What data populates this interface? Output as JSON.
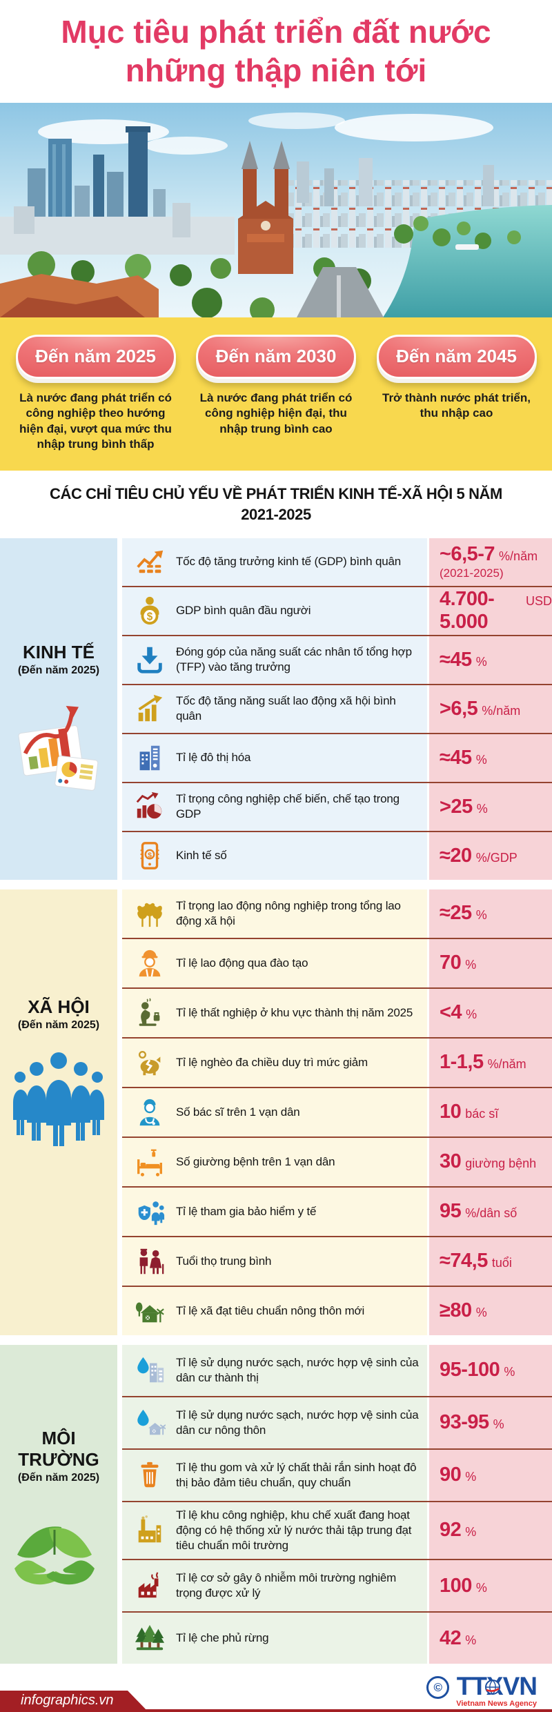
{
  "title": {
    "line1": "Mục tiêu phát triển đất nước",
    "line2": "những thập niên tới"
  },
  "photo": {
    "description": "city-skyline-photo"
  },
  "milestones": [
    {
      "label": "Đến năm 2025",
      "description": "Là nước đang phát triển có công nghiệp theo hướng hiện đại, vượt qua mức thu nhập trung bình thấp"
    },
    {
      "label": "Đến năm 2030",
      "description": "Là nước đang phát triển có công nghiệp hiện đại, thu nhập trung bình cao"
    },
    {
      "label": "Đến năm 2045",
      "description": "Trở thành nước phát triển, thu nhập cao"
    }
  ],
  "table": {
    "heading_line1": "CÁC CHỈ TIÊU CHỦ YẾU VỀ PHÁT TRIỂN KINH TẾ-XÃ HỘI 5 NĂM",
    "heading_line2": "2021-2025",
    "sections": [
      {
        "name": "KINH TẾ",
        "subtitle": "(Đến năm 2025)",
        "side_icon": "economy-charts-icon",
        "theme": "kinhte",
        "rows": [
          {
            "icon": "gdp-growth-chart-icon",
            "label": "Tốc độ tăng trưởng kinh tế (GDP) bình quân",
            "value": "~6,5-7",
            "unit": "%/năm",
            "note": "(2021-2025)"
          },
          {
            "icon": "gdp-per-capita-icon",
            "label": "GDP bình quân đầu người",
            "value": "4.700-5.000",
            "unit": "USD",
            "note": ""
          },
          {
            "icon": "tfp-contribution-icon",
            "label": "Đóng góp của năng suất các nhân tố tổng hợp (TFP) vào tăng trưởng",
            "value": "≈45",
            "unit": "%",
            "note": ""
          },
          {
            "icon": "labor-productivity-icon",
            "label": "Tốc độ tăng năng suất lao động xã hội bình quân",
            "value": ">6,5",
            "unit": "%/năm",
            "note": ""
          },
          {
            "icon": "urbanization-icon",
            "label": "Tỉ lệ đô thị hóa",
            "value": "≈45",
            "unit": "%",
            "note": ""
          },
          {
            "icon": "manufacturing-share-icon",
            "label": "Tỉ trọng công nghiệp chế biến, chế tạo trong GDP",
            "value": ">25",
            "unit": "%",
            "note": ""
          },
          {
            "icon": "digital-economy-icon",
            "label": "Kinh tế số",
            "value": "≈20",
            "unit": "%/GDP",
            "note": ""
          }
        ]
      },
      {
        "name": "XÃ HỘI",
        "subtitle": "(Đến năm 2025)",
        "side_icon": "society-people-icon",
        "theme": "xahoi",
        "rows": [
          {
            "icon": "wheat-icon",
            "label": "Tỉ trọng lao động nông nghiệp trong tổng lao động xã hội",
            "value": "≈25",
            "unit": "%",
            "note": ""
          },
          {
            "icon": "trained-worker-icon",
            "label": "Tỉ lệ lao động qua đào tạo",
            "value": "70",
            "unit": "%",
            "note": ""
          },
          {
            "icon": "unemployment-icon",
            "label": "Tỉ lệ thất nghiệp ở khu vực thành thị năm 2025",
            "value": "<4",
            "unit": "%",
            "note": ""
          },
          {
            "icon": "poverty-reduction-icon",
            "label": "Tỉ lệ nghèo đa chiều duy trì mức giảm",
            "value": "1-1,5",
            "unit": "%/năm",
            "note": ""
          },
          {
            "icon": "doctor-icon",
            "label": "Số bác sĩ trên 1 vạn dân",
            "value": "10",
            "unit": "bác sĩ",
            "note": ""
          },
          {
            "icon": "hospital-bed-icon",
            "label": "Số giường bệnh trên 1 vạn dân",
            "value": "30",
            "unit": "giường bệnh",
            "note": ""
          },
          {
            "icon": "health-insurance-icon",
            "label": "Tỉ lệ tham gia bảo hiểm y tế",
            "value": "95",
            "unit": "%/dân số",
            "note": ""
          },
          {
            "icon": "life-expectancy-icon",
            "label": "Tuổi thọ trung bình",
            "value": "≈74,5",
            "unit": "tuổi",
            "note": ""
          },
          {
            "icon": "new-rural-standard-icon",
            "label": "Tỉ lệ xã đạt tiêu chuẩn nông thôn mới",
            "value": "≥80",
            "unit": "%",
            "note": ""
          }
        ]
      },
      {
        "name": "MÔI TRƯỜNG",
        "subtitle": "(Đến năm 2025)",
        "side_icon": "environment-hands-icon",
        "theme": "moitruong",
        "rows": [
          {
            "icon": "urban-clean-water-icon",
            "label": "Tỉ lệ sử dụng nước sạch, nước hợp vệ sinh của dân cư thành thị",
            "value": "95-100",
            "unit": "%",
            "note": ""
          },
          {
            "icon": "rural-clean-water-icon",
            "label": "Tỉ lệ sử dụng nước sạch, nước hợp vệ sinh của dân cư nông thôn",
            "value": "93-95",
            "unit": "%",
            "note": ""
          },
          {
            "icon": "solid-waste-icon",
            "label": "Tỉ lệ thu gom và xử lý chất thải rắn sinh hoạt đô thị bảo đảm tiêu chuẩn, quy chuẩn",
            "value": "90",
            "unit": "%",
            "note": ""
          },
          {
            "icon": "industrial-wastewater-icon",
            "label": "Tỉ lệ khu công nghiệp, khu chế xuất đang hoạt động có hệ thống xử lý nước thải tập trung đạt tiêu chuẩn môi trường",
            "value": "92",
            "unit": "%",
            "note": ""
          },
          {
            "icon": "polluting-facility-icon",
            "label": "Tỉ lệ cơ sở gây ô nhiễm môi trường nghiêm trọng được xử lý",
            "value": "100",
            "unit": "%",
            "note": ""
          },
          {
            "icon": "forest-cover-icon",
            "label": "Tỉ lệ che phủ rừng",
            "value": "42",
            "unit": "%",
            "note": ""
          }
        ]
      }
    ]
  },
  "footer": {
    "site": "infographics.vn",
    "copyright": "©",
    "agency_abbr": "TTXVN",
    "agency_name": "Vietnam News Agency"
  },
  "colors": {
    "title_pink": "#e23a64",
    "milestone_yellow": "#f8d84e",
    "pill_coral": "#ea6467",
    "value_red": "#c92048",
    "separator_maroon": "#94432f",
    "economy_tint": "#eaf3fa",
    "society_tint": "#fdf8e2",
    "environment_tint": "#ebf3e7",
    "value_column_pink": "#f7d3d7",
    "footer_red": "#a31f24",
    "agency_blue": "#1d4fa0"
  }
}
